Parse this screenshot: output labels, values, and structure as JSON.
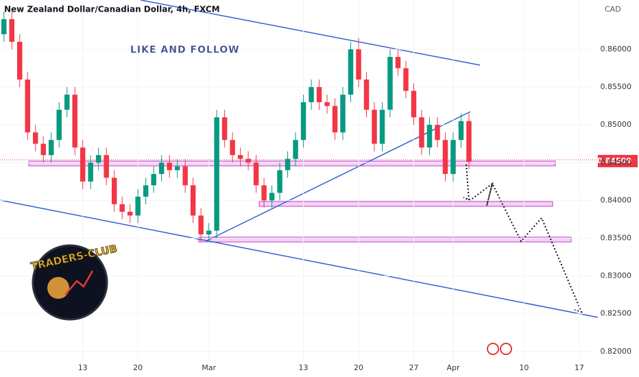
{
  "chart_data": {
    "type": "candlestick",
    "title": "New Zealand Dollar/Canadian Dollar, 4h, FXCM",
    "currency": "CAD",
    "annotation": "LIKE AND FOLLOW",
    "logo_text": "TRADERS-CLUB",
    "last_price": 0.84509,
    "up_color": "#089981",
    "down_color": "#f23645",
    "x": [
      3,
      4,
      5,
      6,
      7,
      8,
      9,
      10,
      11,
      12,
      13,
      14,
      15,
      16,
      17,
      18,
      19,
      20,
      21,
      22,
      23,
      24,
      25,
      26,
      27,
      28,
      29,
      30,
      31,
      32,
      33,
      34,
      35,
      36,
      37,
      38,
      39,
      40,
      41,
      42,
      43,
      44,
      45,
      46,
      47,
      48,
      49,
      50,
      51,
      52,
      53,
      54,
      55,
      56,
      57,
      58,
      59,
      60,
      61,
      62
    ],
    "open": [
      0.862,
      0.864,
      0.861,
      0.856,
      0.849,
      0.8475,
      0.846,
      0.848,
      0.852,
      0.854,
      0.847,
      0.8425,
      0.845,
      0.846,
      0.843,
      0.8395,
      0.8385,
      0.838,
      0.8405,
      0.842,
      0.8435,
      0.845,
      0.844,
      0.8445,
      0.842,
      0.838,
      0.8355,
      0.836,
      0.851,
      0.848,
      0.846,
      0.8455,
      0.845,
      0.842,
      0.84,
      0.841,
      0.844,
      0.8455,
      0.848,
      0.853,
      0.855,
      0.853,
      0.8525,
      0.849,
      0.854,
      0.86,
      0.856,
      0.852,
      0.8475,
      0.852,
      0.859,
      0.8575,
      0.8545,
      0.851,
      0.847,
      0.85,
      0.848,
      0.8435,
      0.848,
      0.8505
    ],
    "high": [
      0.865,
      0.865,
      0.862,
      0.857,
      0.85,
      0.8485,
      0.849,
      0.853,
      0.855,
      0.855,
      0.848,
      0.846,
      0.847,
      0.847,
      0.844,
      0.8405,
      0.8395,
      0.8415,
      0.843,
      0.8445,
      0.846,
      0.846,
      0.8455,
      0.8455,
      0.843,
      0.839,
      0.837,
      0.852,
      0.852,
      0.849,
      0.847,
      0.8465,
      0.846,
      0.843,
      0.842,
      0.845,
      0.8465,
      0.849,
      0.854,
      0.856,
      0.856,
      0.854,
      0.8535,
      0.855,
      0.861,
      0.8615,
      0.857,
      0.853,
      0.853,
      0.86,
      0.86,
      0.8585,
      0.8555,
      0.852,
      0.851,
      0.851,
      0.849,
      0.849,
      0.8515,
      0.8515
    ],
    "low": [
      0.861,
      0.86,
      0.855,
      0.848,
      0.8465,
      0.845,
      0.845,
      0.847,
      0.851,
      0.846,
      0.8415,
      0.8415,
      0.844,
      0.842,
      0.8385,
      0.8375,
      0.837,
      0.837,
      0.8395,
      0.841,
      0.8425,
      0.843,
      0.843,
      0.841,
      0.837,
      0.8345,
      0.8345,
      0.835,
      0.847,
      0.845,
      0.8445,
      0.844,
      0.841,
      0.839,
      0.839,
      0.84,
      0.843,
      0.8445,
      0.847,
      0.852,
      0.852,
      0.8515,
      0.848,
      0.848,
      0.853,
      0.855,
      0.851,
      0.8465,
      0.8465,
      0.851,
      0.8565,
      0.8535,
      0.85,
      0.846,
      0.846,
      0.847,
      0.8425,
      0.8425,
      0.847,
      0.8441
    ],
    "close": [
      0.864,
      0.861,
      0.856,
      0.849,
      0.8475,
      0.846,
      0.848,
      0.852,
      0.854,
      0.847,
      0.8425,
      0.845,
      0.846,
      0.843,
      0.8395,
      0.8385,
      0.838,
      0.8405,
      0.842,
      0.8435,
      0.845,
      0.844,
      0.8445,
      0.842,
      0.838,
      0.8355,
      0.836,
      0.851,
      0.848,
      0.846,
      0.8455,
      0.845,
      0.842,
      0.84,
      0.841,
      0.844,
      0.8455,
      0.848,
      0.853,
      0.855,
      0.853,
      0.8525,
      0.849,
      0.854,
      0.86,
      0.856,
      0.852,
      0.8475,
      0.852,
      0.859,
      0.8575,
      0.8545,
      0.851,
      0.847,
      0.85,
      0.848,
      0.8435,
      0.848,
      0.8505,
      0.8451
    ],
    "xlim": [
      2.5,
      77.75
    ],
    "xticks": [
      {
        "value": 13,
        "label": "13"
      },
      {
        "value": 20,
        "label": "20"
      },
      {
        "value": 29,
        "label": "Mar"
      },
      {
        "value": 41,
        "label": "13"
      },
      {
        "value": 48,
        "label": "20"
      },
      {
        "value": 55,
        "label": "27"
      },
      {
        "value": 60,
        "label": "Apr"
      },
      {
        "value": 69,
        "label": "10"
      },
      {
        "value": 76,
        "label": "17"
      }
    ],
    "ylim": [
      0.81862,
      0.86653
    ],
    "yticks": [
      {
        "value": 0.82,
        "label": "0.82000"
      },
      {
        "value": 0.825,
        "label": "0.82500"
      },
      {
        "value": 0.83,
        "label": "0.83000"
      },
      {
        "value": 0.835,
        "label": "0.83500"
      },
      {
        "value": 0.84,
        "label": "0.84000"
      },
      {
        "value": 0.845,
        "label": "0.84500"
      },
      {
        "value": 0.85,
        "label": "0.85000"
      },
      {
        "value": 0.855,
        "label": "0.85500"
      },
      {
        "value": 0.86,
        "label": "0.86000"
      }
    ]
  }
}
